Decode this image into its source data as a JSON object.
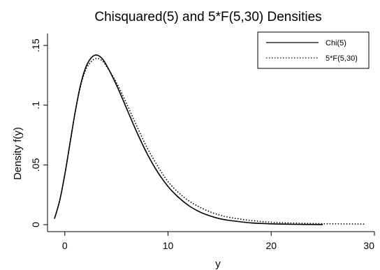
{
  "chart_data": {
    "type": "line",
    "title": "Chisquared(5) and 5*F(5,30) Densities",
    "xlabel": "y",
    "ylabel": "Density f(y)",
    "xlim": [
      -1,
      30
    ],
    "ylim": [
      0,
      0.16
    ],
    "xticks": [
      0,
      10,
      20,
      30
    ],
    "xtick_labels": [
      "0",
      "10",
      "20",
      "30"
    ],
    "yticks": [
      0,
      0.05,
      0.1,
      0.15
    ],
    "ytick_labels": [
      "0",
      ".05",
      ".1",
      ".15"
    ],
    "grid": false,
    "legend_position": "top-right",
    "series": [
      {
        "name": "Chi(5)",
        "style": "solid",
        "x": [
          -1,
          -0.5,
          0,
          0.5,
          1,
          1.5,
          2,
          2.5,
          3,
          3.5,
          4,
          5,
          6,
          7,
          8,
          9,
          10,
          11,
          12,
          13,
          14,
          15,
          16,
          18,
          20,
          22,
          25
        ],
        "y": [
          0.005,
          0.02,
          0.042,
          0.068,
          0.094,
          0.116,
          0.131,
          0.139,
          0.142,
          0.14,
          0.134,
          0.117,
          0.097,
          0.077,
          0.059,
          0.044,
          0.032,
          0.023,
          0.016,
          0.011,
          0.0075,
          0.005,
          0.0035,
          0.0015,
          0.0007,
          0.0003,
          0.0001
        ]
      },
      {
        "name": "5*F(5,30)",
        "style": "dotted",
        "x": [
          -1,
          -0.5,
          0,
          0.5,
          1,
          1.5,
          2,
          2.5,
          3,
          3.5,
          4,
          5,
          6,
          7,
          8,
          9,
          10,
          11,
          12,
          13,
          14,
          15,
          16,
          18,
          20,
          22,
          25,
          29
        ],
        "y": [
          0.005,
          0.02,
          0.042,
          0.068,
          0.094,
          0.115,
          0.129,
          0.136,
          0.139,
          0.138,
          0.133,
          0.119,
          0.101,
          0.082,
          0.064,
          0.049,
          0.036,
          0.027,
          0.02,
          0.015,
          0.011,
          0.008,
          0.006,
          0.0035,
          0.002,
          0.0013,
          0.0008,
          0.0005
        ]
      }
    ]
  }
}
